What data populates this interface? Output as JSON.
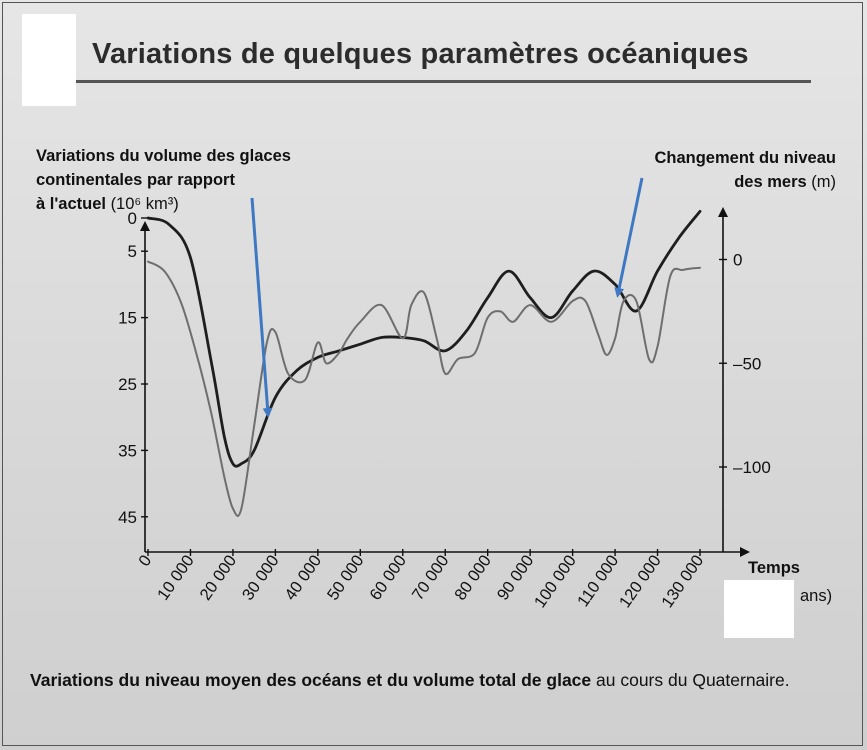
{
  "header": {
    "title": "Variations de quelques paramètres océaniques"
  },
  "caption": {
    "bold": "Variations du niveau moyen des océans et du volume total de glace",
    "rest": "au cours du Quaternaire."
  },
  "chart_data": {
    "type": "line",
    "x_axis": {
      "label_bold": "Temps",
      "label_rest": "ans)",
      "range": [
        0,
        130000
      ],
      "ticks": [
        "0",
        "10 000",
        "20 000",
        "30 000",
        "40 000",
        "50 000",
        "60 000",
        "70 000",
        "80 000",
        "90 000",
        "100 000",
        "110 000",
        "120 000",
        "130 000"
      ]
    },
    "y_left": {
      "label_bold_1": "Variations du volume des glaces",
      "label_bold_2": "continentales par rapport",
      "label_bold_3": "à l'actuel",
      "unit": "(10⁶ km³)",
      "range": [
        0,
        50
      ],
      "inverted": true,
      "ticks": [
        "0",
        "5",
        "15",
        "25",
        "35",
        "45"
      ]
    },
    "y_right": {
      "label_bold_1": "Changement du niveau",
      "label_bold_2": "des mers",
      "unit": "(m)",
      "range": [
        20,
        -140
      ],
      "ticks": [
        "0",
        "–50",
        "–100"
      ]
    },
    "series": [
      {
        "axis": "left",
        "color": "#1e1e1e",
        "x": [
          0,
          5000,
          10000,
          15000,
          18000,
          20000,
          22000,
          25000,
          30000,
          35000,
          40000,
          45000,
          50000,
          55000,
          60000,
          65000,
          70000,
          75000,
          80000,
          85000,
          90000,
          95000,
          100000,
          105000,
          110000,
          115000,
          120000,
          125000,
          130000
        ],
        "y": [
          0,
          1,
          6,
          22,
          33,
          37,
          37,
          35,
          27,
          23,
          21,
          20,
          19,
          18,
          18,
          18.5,
          20,
          17,
          12,
          8,
          12,
          15,
          11,
          8,
          10,
          14,
          8,
          3,
          -1
        ]
      },
      {
        "axis": "right",
        "color": "#6e6e6e",
        "x": [
          0,
          4000,
          8000,
          12000,
          15000,
          18000,
          20000,
          22000,
          25000,
          28000,
          30000,
          33000,
          37000,
          40000,
          42000,
          45000,
          47000,
          50000,
          55000,
          60000,
          62000,
          65000,
          68000,
          70000,
          73000,
          77000,
          80000,
          83000,
          86000,
          90000,
          95000,
          100000,
          103000,
          106000,
          108000,
          110000,
          112000,
          115000,
          118000,
          120000,
          123000,
          126000,
          130000
        ],
        "y": [
          -1,
          -6,
          -22,
          -50,
          -75,
          -105,
          -120,
          -120,
          -80,
          -40,
          -35,
          -55,
          -58,
          -40,
          -50,
          -45,
          -38,
          -30,
          -22,
          -38,
          -22,
          -16,
          -38,
          -55,
          -48,
          -45,
          -28,
          -25,
          -30,
          -22,
          -30,
          -20,
          -20,
          -36,
          -46,
          -38,
          -20,
          -20,
          -48,
          -42,
          -8,
          -5,
          -4
        ]
      }
    ],
    "annotations": [
      {
        "type": "arrow",
        "color": "#3e78c2",
        "points_to": "continental-ice-volume-curve"
      },
      {
        "type": "arrow",
        "color": "#3e78c2",
        "points_to": "sea-level-curve"
      }
    ]
  }
}
